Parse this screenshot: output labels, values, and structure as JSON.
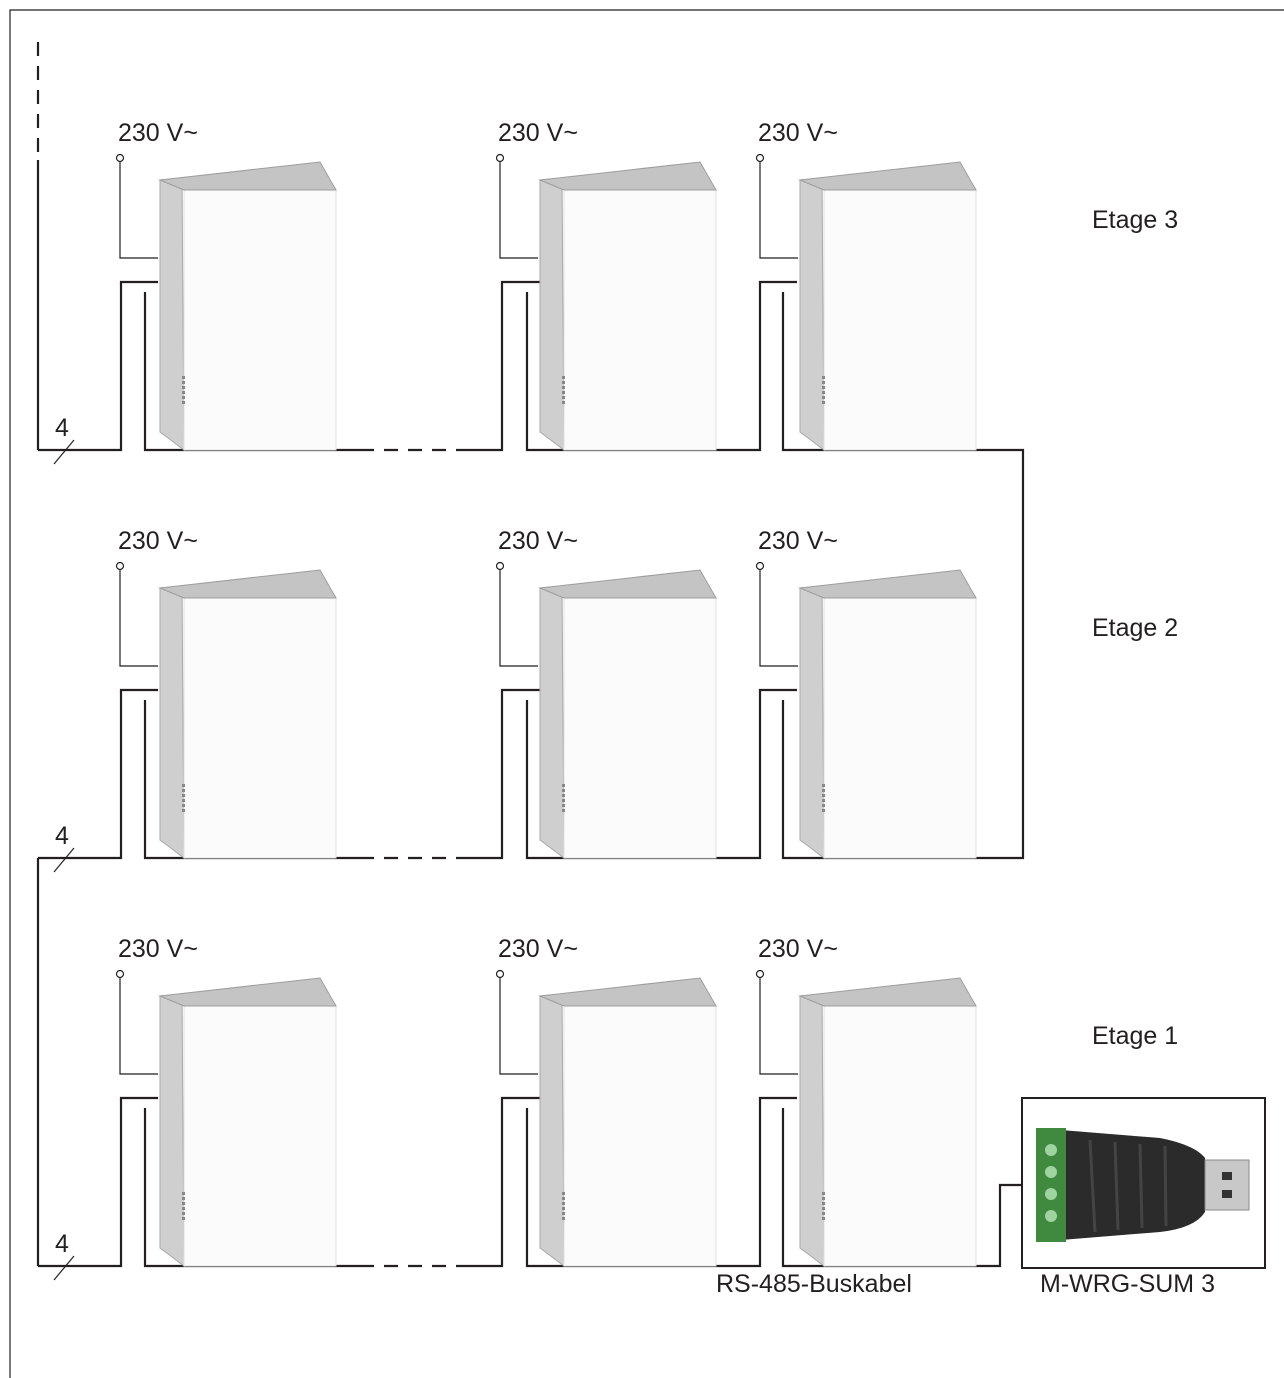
{
  "floors": [
    {
      "label": "Etage 3",
      "cable_count": "4",
      "units": [
        {
          "voltage": "230 V~"
        },
        {
          "voltage": "230 V~"
        },
        {
          "voltage": "230 V~"
        }
      ]
    },
    {
      "label": "Etage 2",
      "cable_count": "4",
      "units": [
        {
          "voltage": "230 V~"
        },
        {
          "voltage": "230 V~"
        },
        {
          "voltage": "230 V~"
        }
      ]
    },
    {
      "label": "Etage 1",
      "cable_count": "4",
      "units": [
        {
          "voltage": "230 V~"
        },
        {
          "voltage": "230 V~"
        },
        {
          "voltage": "230 V~"
        }
      ]
    }
  ],
  "bus_label": "RS-485-Buskabel",
  "converter_label": "M-WRG-SUM 3"
}
